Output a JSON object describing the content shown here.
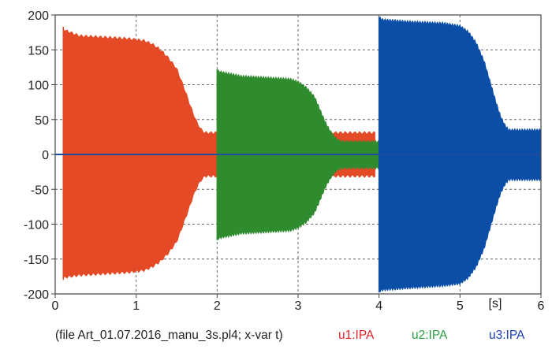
{
  "chart_data": {
    "type": "area",
    "title": "",
    "xlabel": "",
    "ylabel": "",
    "xlim": [
      0,
      6
    ],
    "ylim": [
      -200,
      200
    ],
    "x_ticks": [
      0,
      1,
      2,
      3,
      4,
      5,
      6
    ],
    "y_ticks": [
      200,
      150,
      100,
      50,
      0,
      -50,
      -100,
      -150,
      -200
    ],
    "x_unit_label": "[s]",
    "grid": true,
    "footer_text": "(file Art_01.07.2016_manu_3s.pl4; x-var t)",
    "legend_placement": "bottom",
    "series": [
      {
        "name": "u1:IPA",
        "color": "#e44a26",
        "envelope": {
          "t": [
            0.1,
            0.12,
            0.3,
            0.6,
            0.9,
            1.1,
            1.2,
            1.3,
            1.4,
            1.5,
            1.55,
            1.6,
            1.65,
            1.7,
            1.75,
            1.8,
            1.85,
            3.95
          ],
          "upper": [
            183,
            180,
            172,
            170,
            168,
            165,
            160,
            152,
            140,
            125,
            110,
            95,
            78,
            62,
            48,
            38,
            33,
            33
          ],
          "lower": [
            -180,
            -178,
            -175,
            -173,
            -171,
            -168,
            -163,
            -155,
            -143,
            -127,
            -112,
            -96,
            -80,
            -63,
            -49,
            -39,
            -33,
            -33
          ]
        }
      },
      {
        "name": "u2:IPA",
        "color": "#2e8b2e",
        "envelope": {
          "t": [
            2.0,
            2.05,
            2.3,
            2.6,
            2.9,
            3.0,
            3.1,
            3.2,
            3.25,
            3.3,
            3.35,
            3.4,
            3.45,
            3.5,
            3.55,
            4.0
          ],
          "upper": [
            122,
            120,
            114,
            112,
            110,
            106,
            98,
            85,
            72,
            58,
            45,
            35,
            27,
            22,
            20,
            20
          ],
          "lower": [
            -123,
            -121,
            -115,
            -113,
            -111,
            -107,
            -99,
            -86,
            -73,
            -59,
            -46,
            -36,
            -28,
            -23,
            -21,
            -21
          ]
        }
      },
      {
        "name": "u3:IPA",
        "color": "#0b4ea8",
        "envelope": {
          "t": [
            4.0,
            4.05,
            4.4,
            4.8,
            5.0,
            5.1,
            5.2,
            5.3,
            5.35,
            5.4,
            5.45,
            5.5,
            5.55,
            5.6,
            6.0
          ],
          "upper": [
            198,
            195,
            192,
            190,
            186,
            178,
            162,
            135,
            115,
            95,
            75,
            57,
            45,
            37,
            37
          ],
          "lower": [
            -198,
            -196,
            -193,
            -190,
            -187,
            -179,
            -163,
            -136,
            -116,
            -96,
            -76,
            -58,
            -46,
            -38,
            -38
          ]
        }
      }
    ],
    "zero_line_color": "#1f4aa0"
  }
}
